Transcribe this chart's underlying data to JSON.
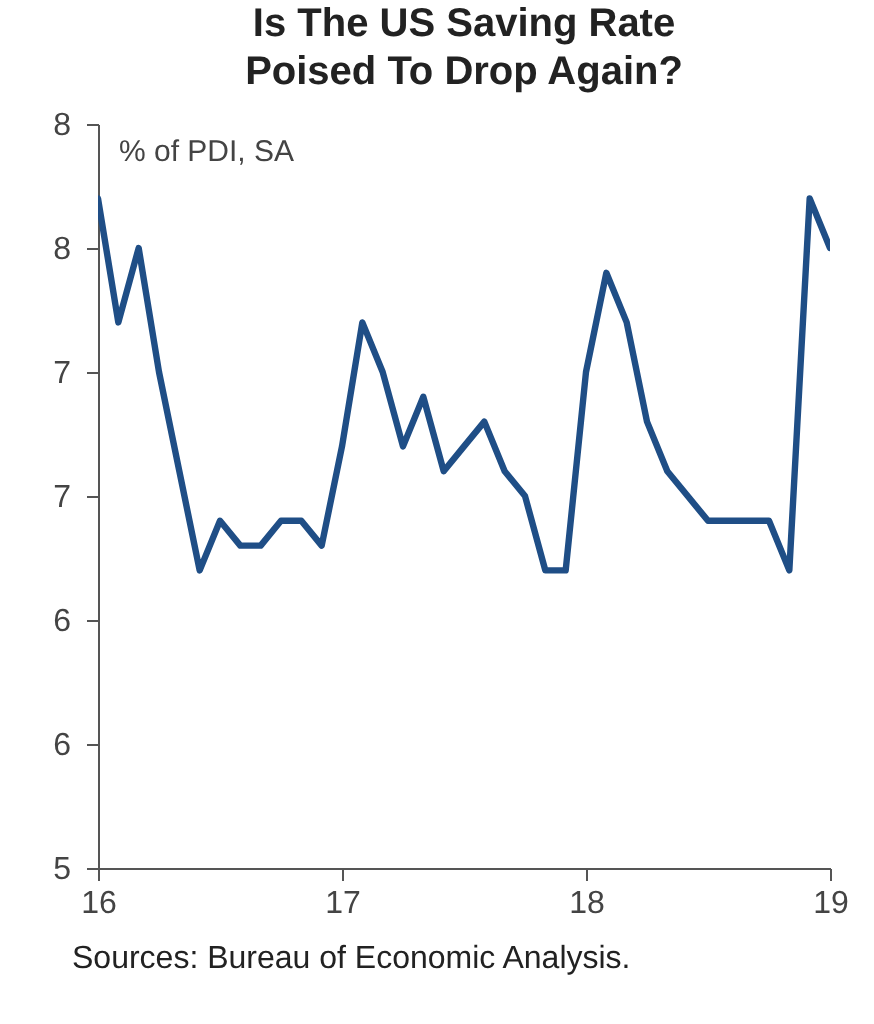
{
  "chart_data": {
    "type": "line",
    "title": "Is The US Saving Rate\nPoised To Drop Again?",
    "ylabel": "% of PDI, SA",
    "annotations": [
      "Sources: Bureau of Economic Analysis."
    ],
    "x": [
      16,
      16.0833,
      16.1667,
      16.25,
      16.3333,
      16.4167,
      16.5,
      16.5833,
      16.6667,
      16.75,
      16.8333,
      16.9167,
      17,
      17.0833,
      17.1667,
      17.25,
      17.3333,
      17.4167,
      17.5,
      17.5833,
      17.6667,
      17.75,
      17.8333,
      17.9167,
      18,
      18.0833,
      18.1667,
      18.25,
      18.3333,
      18.4167,
      18.5,
      18.5833,
      18.6667,
      18.75,
      18.8333,
      18.9167,
      19
    ],
    "series": [
      {
        "color": "#1f4e86",
        "values": [
          7.7,
          7.2,
          7.5,
          7.0,
          6.6,
          6.2,
          6.4,
          6.3,
          6.3,
          6.4,
          6.4,
          6.3,
          6.7,
          7.2,
          7.0,
          6.7,
          6.9,
          6.6,
          6.7,
          6.8,
          6.6,
          6.5,
          6.2,
          6.2,
          7.0,
          7.4,
          7.2,
          6.8,
          6.6,
          6.5,
          6.4,
          6.4,
          6.4,
          6.4,
          6.2,
          7.7,
          7.5
        ]
      }
    ],
    "xlim": [
      16,
      19
    ],
    "xticks": [
      16,
      17,
      18,
      19
    ],
    "ylim": [
      5,
      8
    ],
    "yticks": [
      5,
      {
        "value": 5.5,
        "label": "6"
      },
      6,
      {
        "value": 6.5,
        "label": "7"
      },
      7,
      {
        "value": 7.5,
        "label": "8"
      },
      8
    ],
    "grid": false,
    "marker": "none",
    "line_style": "solid"
  }
}
